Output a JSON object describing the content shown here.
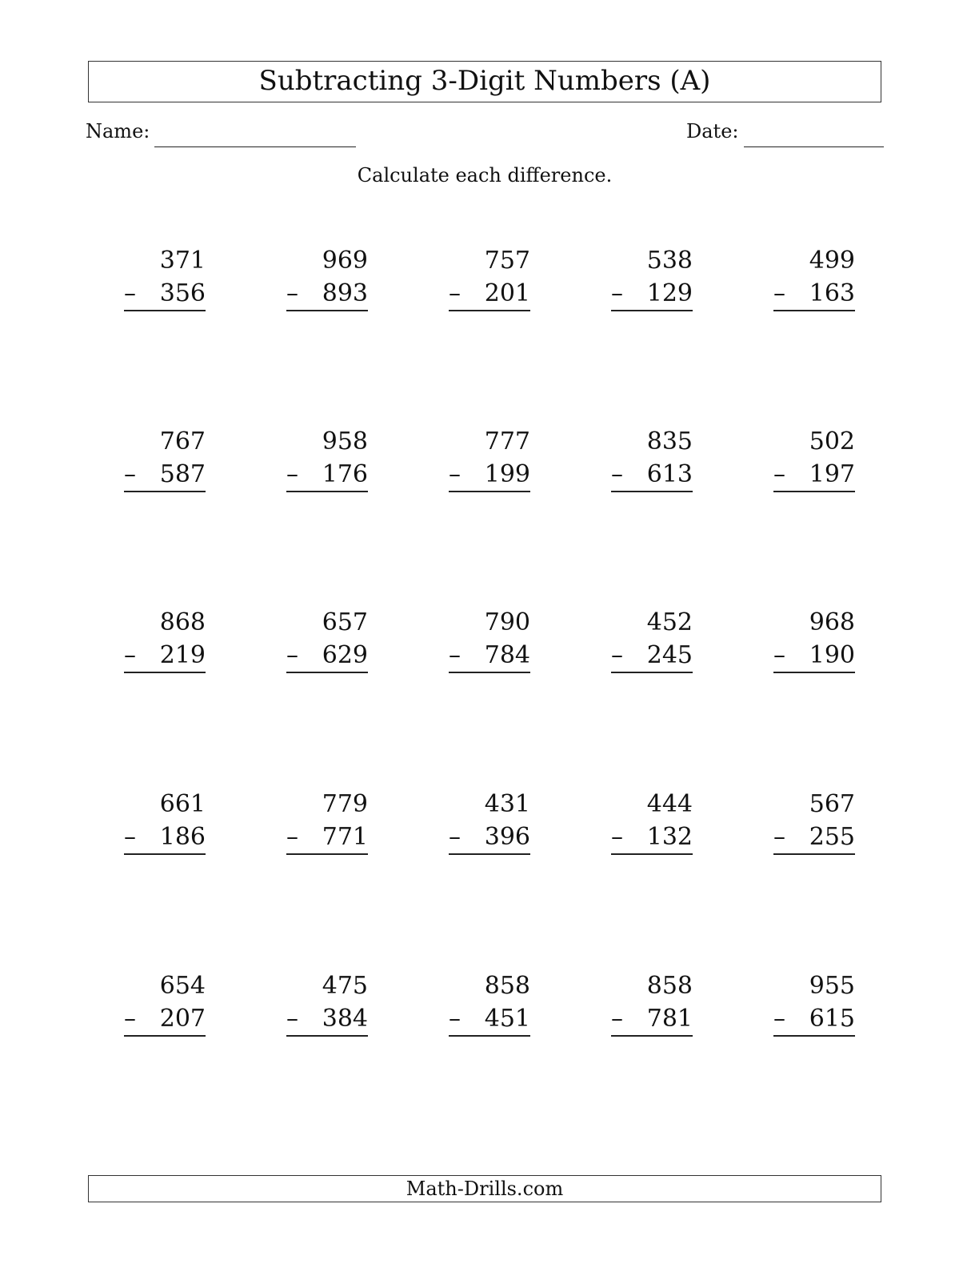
{
  "title": "Subtracting 3-Digit Numbers (A)",
  "name_label": "Name:",
  "date_label": "Date:",
  "instruction": "Calculate each difference.",
  "operator": "–",
  "problems": [
    [
      [
        "371",
        "356"
      ],
      [
        "969",
        "893"
      ],
      [
        "757",
        "201"
      ],
      [
        "538",
        "129"
      ],
      [
        "499",
        "163"
      ]
    ],
    [
      [
        "767",
        "587"
      ],
      [
        "958",
        "176"
      ],
      [
        "777",
        "199"
      ],
      [
        "835",
        "613"
      ],
      [
        "502",
        "197"
      ]
    ],
    [
      [
        "868",
        "219"
      ],
      [
        "657",
        "629"
      ],
      [
        "790",
        "784"
      ],
      [
        "452",
        "245"
      ],
      [
        "968",
        "190"
      ]
    ],
    [
      [
        "661",
        "186"
      ],
      [
        "779",
        "771"
      ],
      [
        "431",
        "396"
      ],
      [
        "444",
        "132"
      ],
      [
        "567",
        "255"
      ]
    ],
    [
      [
        "654",
        "207"
      ],
      [
        "475",
        "384"
      ],
      [
        "858",
        "451"
      ],
      [
        "858",
        "781"
      ],
      [
        "955",
        "615"
      ]
    ]
  ],
  "footer": "Math-Drills.com"
}
